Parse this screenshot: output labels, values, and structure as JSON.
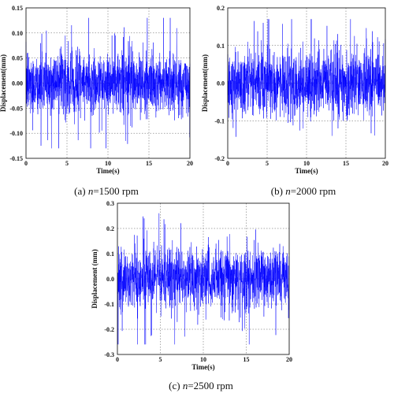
{
  "chart_data": [
    {
      "type": "line",
      "xlabel": "Time(s)",
      "ylabel": "Displacement(mm)",
      "xlim": [
        0,
        20
      ],
      "ylim": [
        -0.15,
        0.15
      ],
      "xticks": [
        0,
        5,
        10,
        15,
        20
      ],
      "yticks": [
        -0.15,
        -0.1,
        -0.05,
        0.0,
        0.05,
        0.1,
        0.15
      ],
      "ytick_labels": [
        "-0.15",
        "-0.10",
        "-0.05",
        "0.00",
        "0.05",
        "0.10",
        "0.15"
      ],
      "xtick_labels": [
        "0",
        "5",
        "10",
        "15",
        "20"
      ],
      "grid": true,
      "series_color": "#0000ff",
      "signal": {
        "rms": 0.033,
        "peak": 0.13
      },
      "caption_prefix": "(a) ",
      "caption_var": "n",
      "caption_value": "=1500 rpm"
    },
    {
      "type": "line",
      "xlabel": "Time(s)",
      "ylabel": "Displacement(mm)",
      "xlim": [
        0,
        20
      ],
      "ylim": [
        -0.2,
        0.2
      ],
      "xticks": [
        0,
        5,
        10,
        15,
        20
      ],
      "yticks": [
        -0.2,
        -0.1,
        0.0,
        0.1,
        0.2
      ],
      "ytick_labels": [
        "-0.2",
        "-0.1",
        "0.0",
        "0.1",
        "0.2"
      ],
      "xtick_labels": [
        "0",
        "5",
        "10",
        "15",
        "20"
      ],
      "grid": true,
      "series_color": "#0000ff",
      "signal": {
        "rms": 0.045,
        "peak": 0.17
      },
      "caption_prefix": "(b) ",
      "caption_var": "n",
      "caption_value": "=2000 rpm"
    },
    {
      "type": "line",
      "xlabel": "Time(s)",
      "ylabel": "Displacement (mm)",
      "xlim": [
        0,
        20
      ],
      "ylim": [
        -0.3,
        0.3
      ],
      "xticks": [
        0,
        5,
        10,
        15,
        20
      ],
      "yticks": [
        -0.3,
        -0.2,
        -0.1,
        0.0,
        0.1,
        0.2,
        0.3
      ],
      "ytick_labels": [
        "-0.3",
        "-0.2",
        "-0.1",
        "0.0",
        "0.1",
        "0.2",
        "0.3"
      ],
      "xtick_labels": [
        "0",
        "5",
        "10",
        "15",
        "20"
      ],
      "grid": true,
      "series_color": "#0000ff",
      "signal": {
        "rms": 0.065,
        "peak": 0.26
      },
      "caption_prefix": "(c) ",
      "caption_var": "n",
      "caption_value": "=2500 rpm"
    }
  ]
}
